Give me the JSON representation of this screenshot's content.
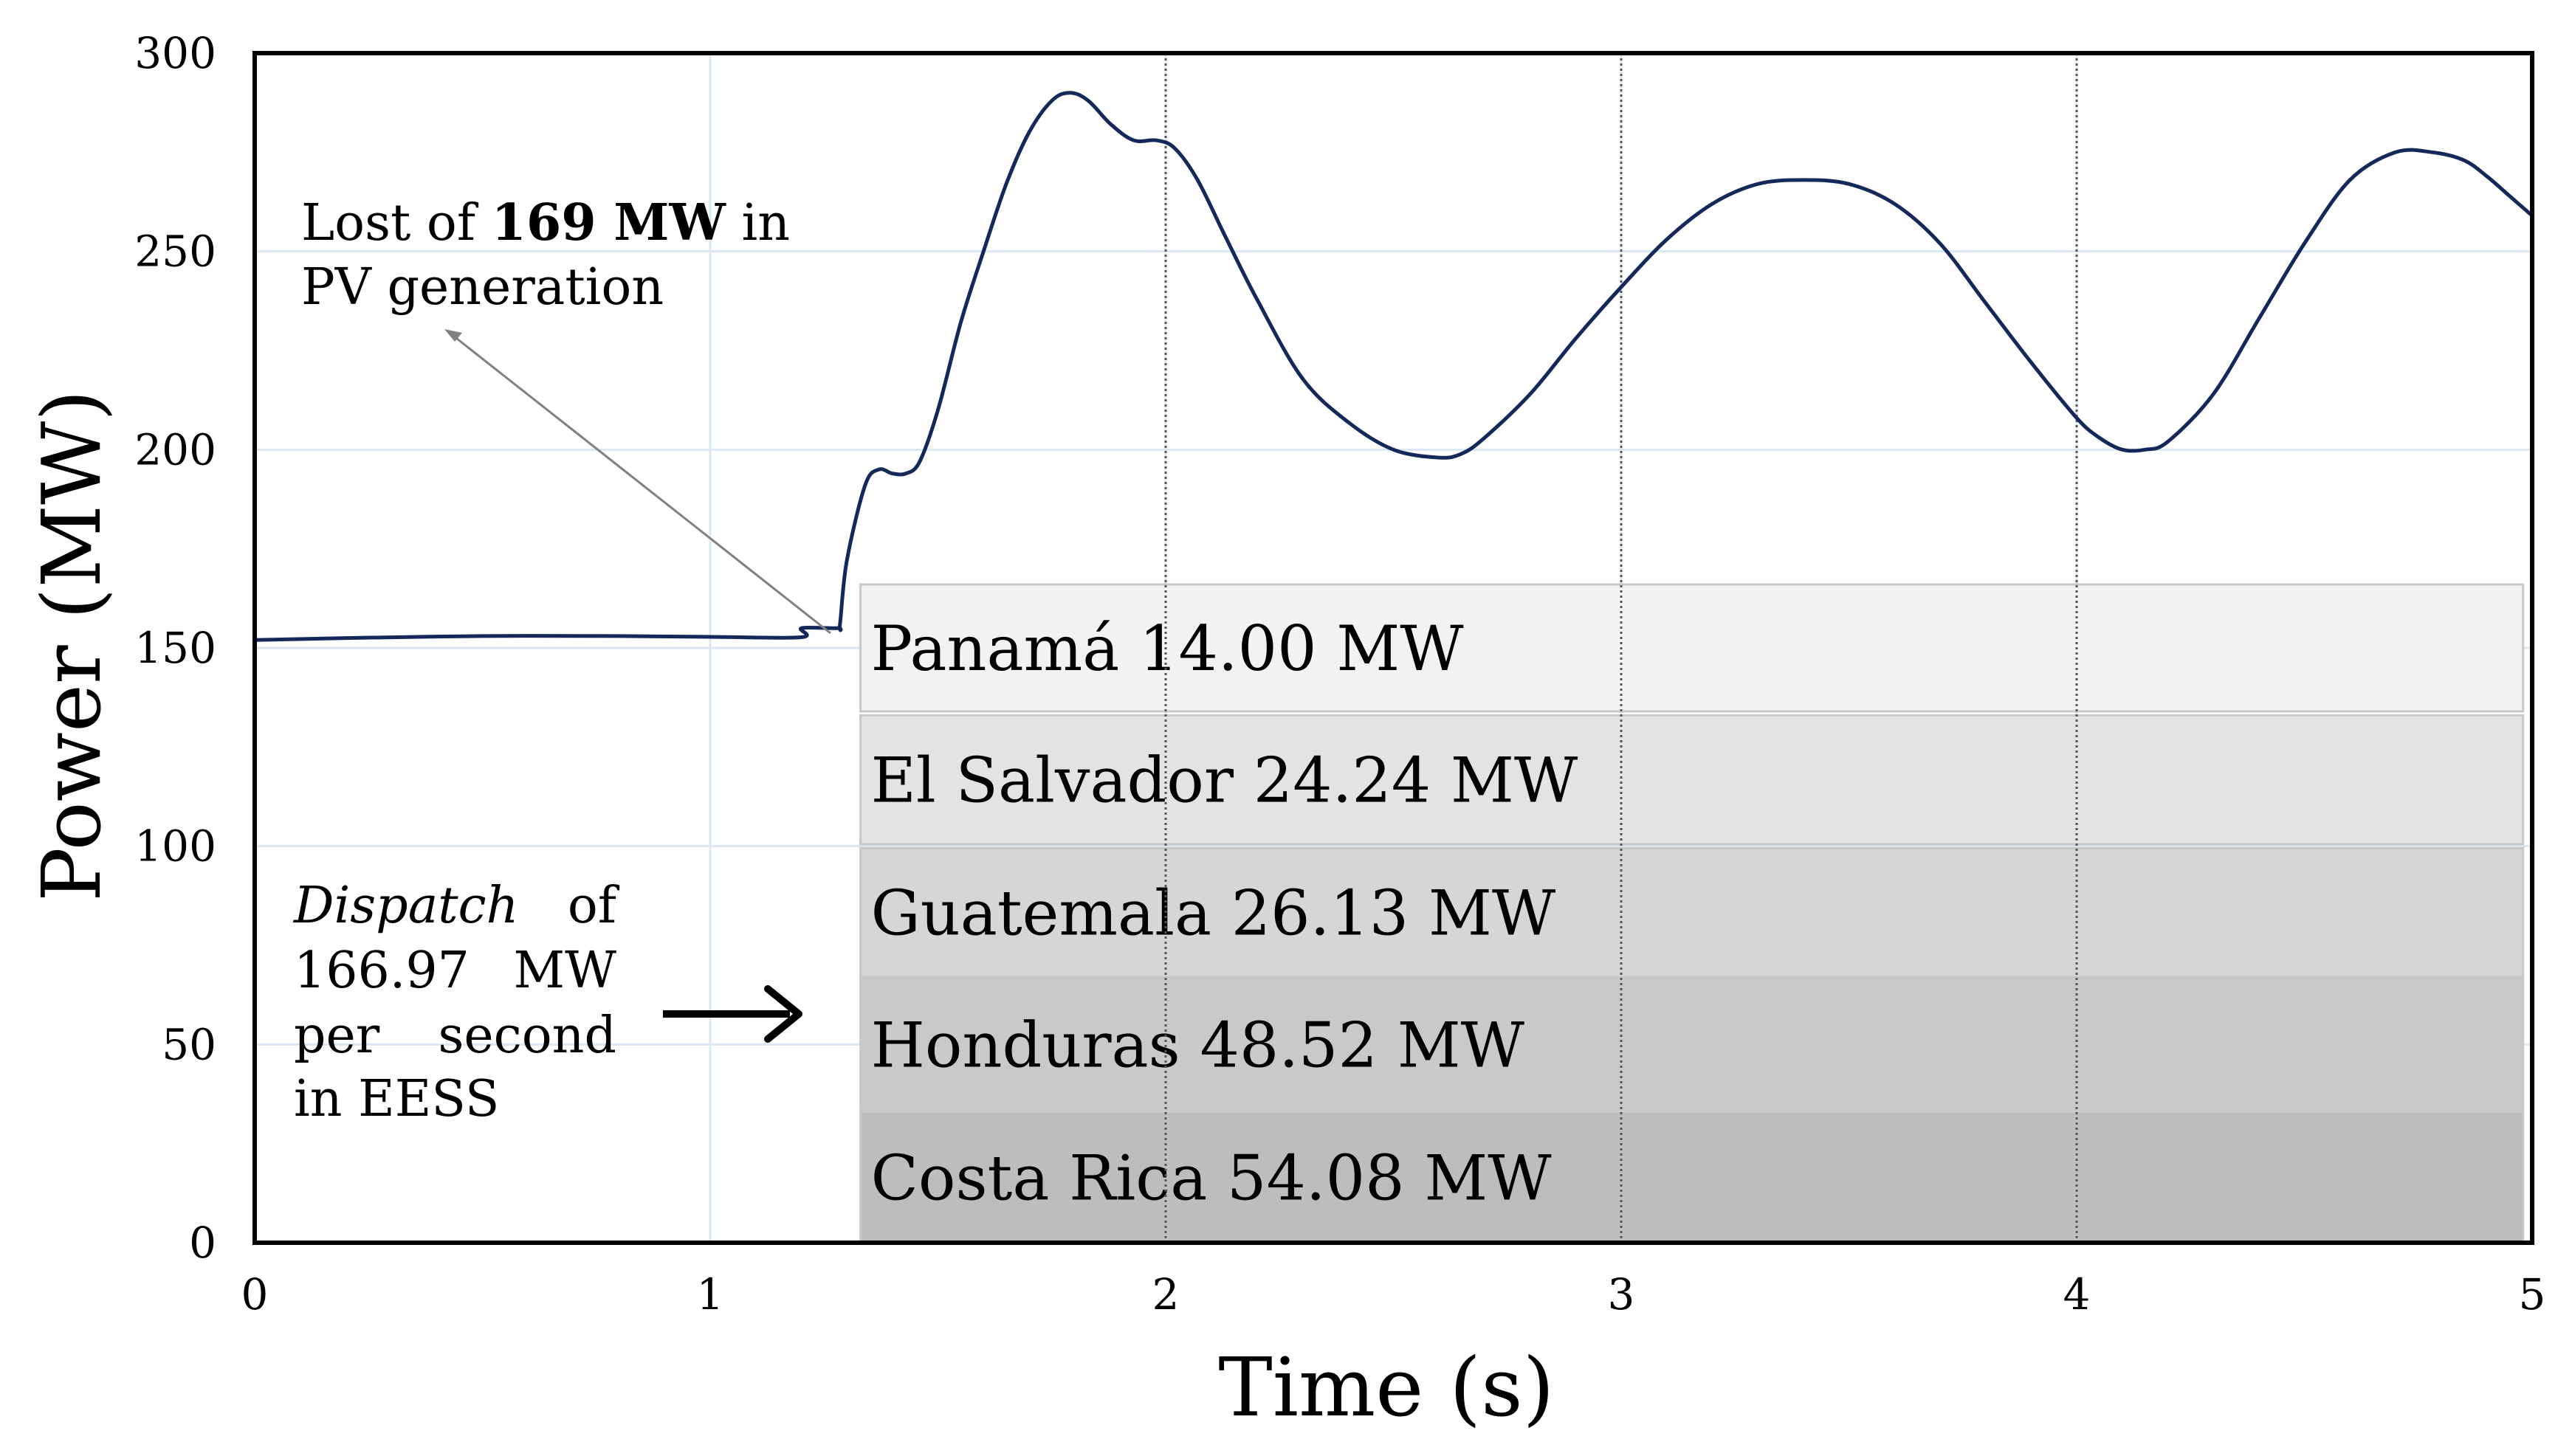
{
  "chart_data": {
    "type": "line",
    "xlabel": "Time (s)",
    "ylabel": "Power (MW)",
    "xlim": [
      0,
      5
    ],
    "ylim": [
      0,
      300
    ],
    "xticks": [
      "0",
      "1",
      "2",
      "3",
      "4",
      "5"
    ],
    "yticks": [
      "0",
      "50",
      "100",
      "150",
      "200",
      "250",
      "300"
    ],
    "grid": true,
    "series": [
      {
        "name": "Power",
        "color": "#14285a",
        "x": [
          0,
          0.2,
          0.5,
          0.8,
          1.0,
          1.2,
          1.201,
          1.28,
          1.285,
          1.3,
          1.34,
          1.37,
          1.4,
          1.43,
          1.46,
          1.5,
          1.55,
          1.6,
          1.65,
          1.7,
          1.75,
          1.79,
          1.83,
          1.88,
          1.93,
          1.98,
          2.02,
          2.07,
          2.13,
          2.2,
          2.3,
          2.4,
          2.5,
          2.6,
          2.65,
          2.7,
          2.8,
          2.9,
          3.0,
          3.1,
          3.2,
          3.3,
          3.4,
          3.5,
          3.6,
          3.7,
          3.8,
          3.9,
          4.0,
          4.05,
          4.1,
          4.15,
          4.2,
          4.3,
          4.4,
          4.5,
          4.6,
          4.7,
          4.78,
          4.85,
          4.9,
          4.95,
          5.0
        ],
        "y": [
          152,
          152.5,
          153,
          153,
          152.8,
          152.7,
          155,
          155,
          156,
          172,
          191,
          195,
          194,
          194,
          197,
          210,
          232,
          250,
          267,
          280,
          288,
          290,
          288,
          282,
          278,
          278,
          276,
          268,
          254,
          238,
          218,
          207,
          200,
          198,
          199,
          203,
          214,
          228,
          241,
          253,
          262,
          267,
          268,
          267,
          262,
          252,
          237,
          222,
          208,
          203,
          200,
          200,
          202,
          214,
          233,
          252,
          268,
          275,
          275,
          273,
          269,
          264,
          259
        ]
      }
    ],
    "bands": [
      {
        "label": "Panamá 14.00 MW",
        "color": "#f2f2f2",
        "y_top": 166,
        "y_bottom": 134
      },
      {
        "label": "El Salvador 24.24 MW",
        "color": "#e3e3e3",
        "y_top": 133,
        "y_bottom": 100.5
      },
      {
        "label": "Guatemala 26.13 MW",
        "color": "#d6d6d6",
        "y_top": 99.5,
        "y_bottom": 67
      },
      {
        "label": "Honduras 48.52 MW",
        "color": "#c9c9c9",
        "y_top": 66.5,
        "y_bottom": 33.5
      },
      {
        "label": "Costa Rica 54.08 MW",
        "color": "#bdbdbd",
        "y_top": 33,
        "y_bottom": 0
      }
    ],
    "bands_x_start": 1.33,
    "bands_x_end": 4.98,
    "annotations": {
      "lost": {
        "line1_prefix": "Lost of ",
        "line1_bold": "169 MW",
        "line1_suffix": " in",
        "line2": "PV generation"
      },
      "dispatch": {
        "word_italic": "Dispatch",
        "line1_rest": "of",
        "line2_a": "166.97",
        "line2_b": "MW",
        "line3_a": "per",
        "line3_b": "second",
        "line4": "in EESS"
      }
    },
    "vertical_lines_x": [
      2,
      3,
      4
    ]
  }
}
